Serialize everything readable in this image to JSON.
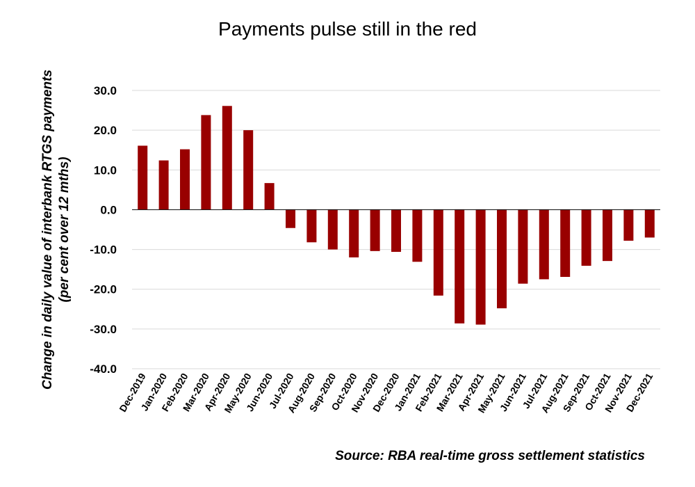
{
  "chart_data": {
    "type": "bar",
    "title": "Payments pulse still in the red",
    "ylabel_line1": "Change in daily value of interbank RTGS payments",
    "ylabel_line2": "(per cent over 12 mths)",
    "source": "Source: RBA real-time gross settlement statistics",
    "ylim": [
      -40,
      30
    ],
    "yticks": [
      30,
      20,
      10,
      0,
      -10,
      -20,
      -30,
      -40
    ],
    "ytick_labels": [
      "30.0",
      "20.0",
      "10.0",
      "0.0",
      "-10.0",
      "-20.0",
      "-30.0",
      "-40.0"
    ],
    "grid": true,
    "bar_color": "#990000",
    "categories": [
      "Dec-2019",
      "Jan-2020",
      "Feb-2020",
      "Mar-2020",
      "Apr-2020",
      "May-2020",
      "Jun-2020",
      "Jul-2020",
      "Aug-2020",
      "Sep-2020",
      "Oct-2020",
      "Nov-2020",
      "Dec-2020",
      "Jan-2021",
      "Feb-2021",
      "Mar-2021",
      "Apr-2021",
      "May-2021",
      "Jun-2021",
      "Jul-2021",
      "Aug-2021",
      "Sep-2021",
      "Oct-2021",
      "Nov-2021",
      "Dec-2021"
    ],
    "values": [
      16.1,
      12.4,
      15.2,
      23.8,
      26.1,
      20.0,
      6.7,
      -4.6,
      -8.2,
      -10.0,
      -12.0,
      -10.4,
      -10.6,
      -13.1,
      -21.6,
      -28.6,
      -28.9,
      -24.8,
      -18.6,
      -17.5,
      -16.9,
      -14.1,
      -12.9,
      -7.8,
      -7.0
    ]
  }
}
